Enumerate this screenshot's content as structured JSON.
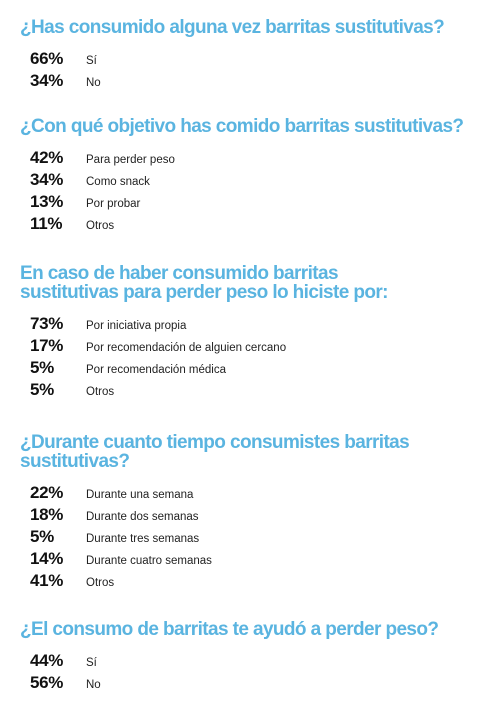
{
  "sections": [
    {
      "question": "¿Has consumido alguna vez barritas sustitutivas?",
      "answers": [
        {
          "pct": "66%",
          "label": "Sí"
        },
        {
          "pct": "34%",
          "label": "No"
        }
      ]
    },
    {
      "question": "¿Con qué objetivo has comido barritas sustitutivas?",
      "answers": [
        {
          "pct": "42%",
          "label": "Para perder peso"
        },
        {
          "pct": "34%",
          "label": "Como snack"
        },
        {
          "pct": "13%",
          "label": "Por probar"
        },
        {
          "pct": "11%",
          "label": "Otros"
        }
      ]
    },
    {
      "question": "En caso de haber consumido barritas sustitutivas para perder peso lo hiciste por:",
      "answers": [
        {
          "pct": "73%",
          "label": "Por iniciativa propia"
        },
        {
          "pct": "17%",
          "label": "Por recomendación de alguien cercano"
        },
        {
          "pct": "5%",
          "label": "Por recomendación médica"
        },
        {
          "pct": "5%",
          "label": "Otros"
        }
      ]
    },
    {
      "question": "¿Durante cuanto tiempo consumistes barritas sustitutivas?",
      "answers": [
        {
          "pct": "22%",
          "label": "Durante una semana"
        },
        {
          "pct": "18%",
          "label": "Durante dos semanas"
        },
        {
          "pct": "5%",
          "label": "Durante tres semanas"
        },
        {
          "pct": "14%",
          "label": "Durante cuatro semanas"
        },
        {
          "pct": "41%",
          "label": "Otros"
        }
      ]
    },
    {
      "question": "¿El consumo de barritas te ayudó a perder peso?",
      "answers": [
        {
          "pct": "44%",
          "label": "Sí"
        },
        {
          "pct": "56%",
          "label": "No"
        }
      ]
    }
  ]
}
